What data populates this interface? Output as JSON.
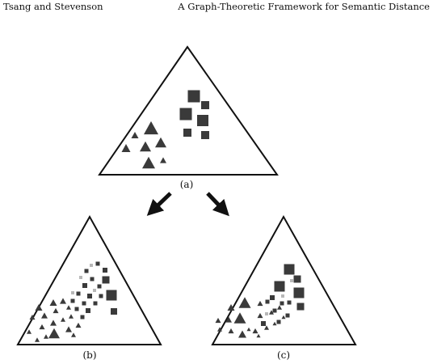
{
  "header": {
    "left": "Tsang and Stevenson",
    "right": "A Graph-Theoretic Framework for Semantic Distance"
  },
  "figure": {
    "panels": [
      {
        "id": "a",
        "caption": "(a)"
      },
      {
        "id": "b",
        "caption": "(b)"
      },
      {
        "id": "c",
        "caption": "(c)"
      }
    ],
    "colors": {
      "outline": "#111111",
      "marker": "#3a3a3a",
      "faint_marker": "#b8b8b8"
    }
  }
}
